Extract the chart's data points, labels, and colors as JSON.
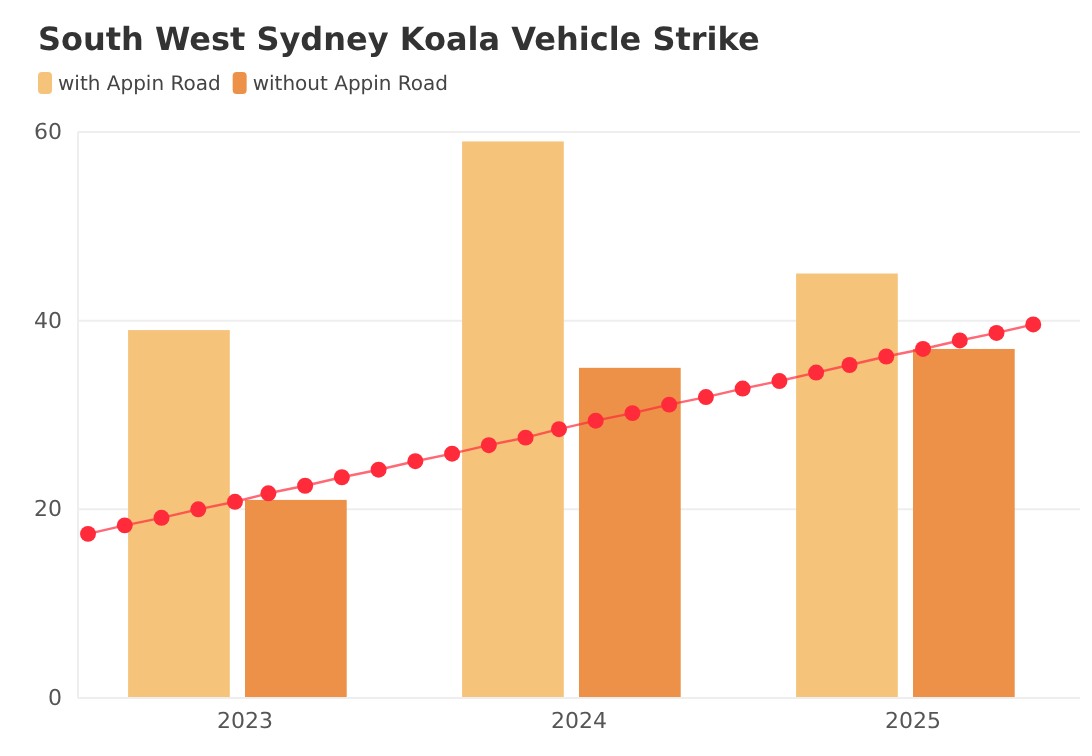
{
  "chart_data": {
    "type": "bar",
    "title": "South West Sydney Koala Vehicle Strike",
    "x": [
      2023,
      2024,
      2025
    ],
    "xlim": [
      2022.5,
      2025.5
    ],
    "xticks": [
      2023,
      2024,
      2025
    ],
    "series": [
      {
        "name": "with Appin Road",
        "color": "#f5c37a",
        "values": [
          39,
          59,
          45
        ]
      },
      {
        "name": "without Appin Road",
        "color": "#ec9147",
        "values": [
          21,
          35,
          37
        ]
      },
      {
        "type": "line",
        "color": "#ff2a3a",
        "marker": "circle",
        "x": [
          2022.53,
          2022.64,
          2022.75,
          2022.86,
          2022.97,
          2023.07,
          2023.18,
          2023.29,
          2023.4,
          2023.51,
          2023.62,
          2023.73,
          2023.84,
          2023.94,
          2024.05,
          2024.16,
          2024.27,
          2024.38,
          2024.49,
          2024.6,
          2024.71,
          2024.81,
          2024.92,
          2025.03,
          2025.14,
          2025.25,
          2025.36
        ],
        "values": [
          17.4,
          18.3,
          19.1,
          20.0,
          20.8,
          21.7,
          22.5,
          23.4,
          24.2,
          25.1,
          25.9,
          26.8,
          27.6,
          28.5,
          29.4,
          30.2,
          31.1,
          31.9,
          32.8,
          33.6,
          34.5,
          35.3,
          36.2,
          37.0,
          37.9,
          38.7,
          39.6
        ]
      }
    ],
    "ylim": [
      0,
      60
    ],
    "yticks": [
      0,
      20,
      40,
      60
    ],
    "grid": "y",
    "legend": "top left"
  }
}
